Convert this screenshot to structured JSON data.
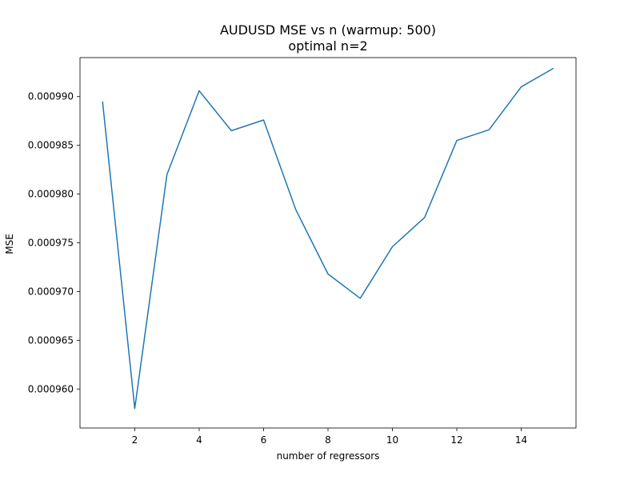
{
  "chart_data": {
    "type": "line",
    "title": "AUDUSD MSE vs n (warmup: 500)",
    "subtitle": "optimal n=2",
    "xlabel": "number of regressors",
    "ylabel": "MSE",
    "xlim": [
      0.3,
      15.7
    ],
    "ylim": [
      0.000956,
      0.000994
    ],
    "x_ticks": [
      2,
      4,
      6,
      8,
      10,
      12,
      14
    ],
    "x_tick_labels": [
      "2",
      "4",
      "6",
      "8",
      "10",
      "12",
      "14"
    ],
    "y_ticks": [
      0.00096,
      0.000965,
      0.00097,
      0.000975,
      0.00098,
      0.000985,
      0.00099
    ],
    "y_tick_labels": [
      "0.000960",
      "0.000965",
      "0.000970",
      "0.000975",
      "0.000980",
      "0.000985",
      "0.000990"
    ],
    "grid": false,
    "series": [
      {
        "color": "#1f77b4",
        "x": [
          1,
          2,
          3,
          4,
          5,
          6,
          7,
          8,
          9,
          10,
          11,
          12,
          13,
          14,
          15
        ],
        "y": [
          0.0009895,
          0.000958,
          0.000982,
          0.0009906,
          0.0009865,
          0.0009876,
          0.0009784,
          0.0009718,
          0.0009693,
          0.0009746,
          0.0009776,
          0.0009855,
          0.0009866,
          0.000991,
          0.0009929
        ]
      }
    ]
  }
}
